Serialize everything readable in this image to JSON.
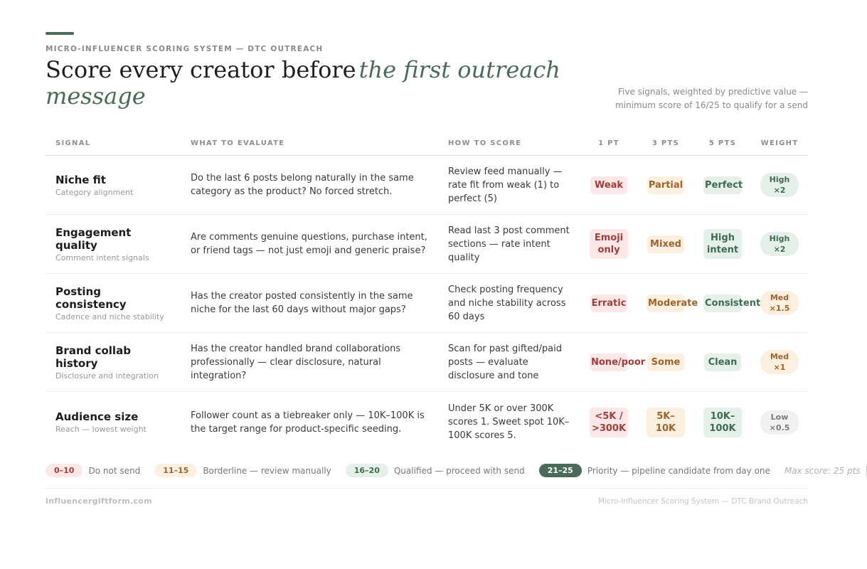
{
  "header": {
    "eyebrow": "MICRO-INFLUENCER SCORING SYSTEM — DTC OUTREACH",
    "title": "Score every creator before",
    "title_emphasis": "the first outreach message",
    "note": "Five signals, weighted by predictive value — minimum score of 16/25 to qualify for a send"
  },
  "table": {
    "columns": [
      "SIGNAL",
      "WHAT TO EVALUATE",
      "HOW TO SCORE",
      "1 PT",
      "3 PTS",
      "5 PTS",
      "WEIGHT"
    ],
    "rows": [
      {
        "signal": "Niche fit",
        "subtitle": "Category alignment",
        "evaluate": "Do the last 6 posts belong naturally in the same category as the product? No forced stretch.",
        "how": "Review feed manually — rate fit from weak (1) to perfect (5)",
        "pt1": "Weak",
        "pt3": "Partial",
        "pt5": "Perfect",
        "weight": "High ×2"
      },
      {
        "signal": "Engagement quality",
        "subtitle": "Comment intent signals",
        "evaluate": "Are comments genuine questions, purchase intent, or friend tags — not just emoji and generic praise?",
        "how": "Read last 3 post comment sections — rate intent quality",
        "pt1": "Emoji only",
        "pt3": "Mixed",
        "pt5": "High intent",
        "weight": "High ×2"
      },
      {
        "signal": "Posting consistency",
        "subtitle": "Cadence and niche stability",
        "evaluate": "Has the creator posted consistently in the same niche for the last 60 days without major gaps?",
        "how": "Check posting frequency and niche stability across 60 days",
        "pt1": "Erratic",
        "pt3": "Moderate",
        "pt5": "Consistent",
        "weight": "Med ×1.5"
      },
      {
        "signal": "Brand collab history",
        "subtitle": "Disclosure and integration",
        "evaluate": "Has the creator handled brand collaborations professionally — clear disclosure, natural integration?",
        "how": "Scan for past gifted/paid posts — evaluate disclosure and tone",
        "pt1": "None/poor",
        "pt3": "Some",
        "pt5": "Clean",
        "weight": "Med ×1"
      },
      {
        "signal": "Audience size",
        "subtitle": "Reach — lowest weight",
        "evaluate": "Follower count as a tiebreaker only — 10K–100K is the target range for product-specific seeding.",
        "how": "Under 5K or over 300K scores 1. Sweet spot 10K–100K scores 5.",
        "pt1": "<5K / >300K",
        "pt3": "5K–10K",
        "pt5": "10K–100K",
        "weight": "Low ×0.5"
      }
    ]
  },
  "legend": [
    {
      "range": "0–10",
      "label": "Do not send"
    },
    {
      "range": "11–15",
      "label": "Borderline — review manually"
    },
    {
      "range": "16–20",
      "label": "Qualified — proceed with send"
    },
    {
      "range": "21–25",
      "label": "Priority — pipeline candidate from day one"
    }
  ],
  "max_score": "Max score: 25 pts",
  "footer": {
    "site": "influencergiftform.com",
    "name": "Micro-Influencer Scoring System — DTC Brand Outreach"
  }
}
